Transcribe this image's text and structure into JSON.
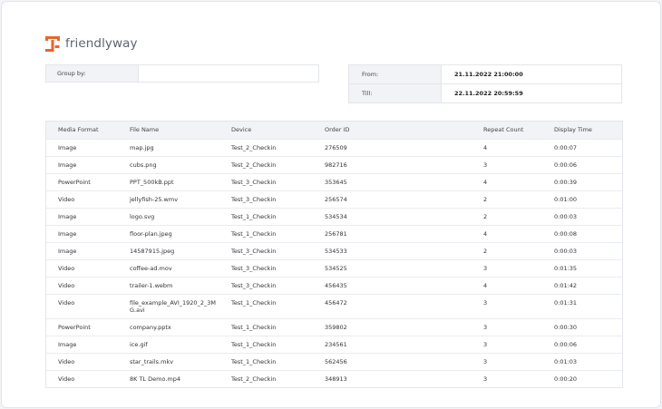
{
  "brand": {
    "name": "friendlyway",
    "accent": "#e8642d"
  },
  "filters": {
    "group_by_label": "Group by:",
    "group_by_value": "",
    "from_label": "From:",
    "from_value": "21.11.2022 21:00:00",
    "till_label": "Till:",
    "till_value": "22.11.2022 20:59:59"
  },
  "table": {
    "headers": [
      "Media Format",
      "File Name",
      "Device",
      "Order ID",
      "Repeat Count",
      "Display Time"
    ],
    "rows": [
      [
        "Image",
        "map.jpg",
        "Test_2_Checkin",
        "276509",
        "4",
        "0:00:07"
      ],
      [
        "Image",
        "cubs.png",
        "Test_2_Checkin",
        "982716",
        "3",
        "0:00:06"
      ],
      [
        "PowerPoint",
        "PPT_500kB.ppt",
        "Test_3_Checkin",
        "353645",
        "4",
        "0:00:39"
      ],
      [
        "Video",
        "jellyfish-25.wmv",
        "Test_3_Checkin",
        "256574",
        "2",
        "0:01:00"
      ],
      [
        "Image",
        "logo.svg",
        "Test_1_Checkin",
        "534534",
        "2",
        "0:00:03"
      ],
      [
        "Image",
        "floor-plan.jpeg",
        "Test_1_Checkin",
        "256781",
        "4",
        "0:00:08"
      ],
      [
        "Image",
        "14587915.jpeg",
        "Test_3_Checkin",
        "534533",
        "2",
        "0:00:03"
      ],
      [
        "Video",
        "coffee-ad.mov",
        "Test_3_Checkin",
        "534525",
        "3",
        "0:01:35"
      ],
      [
        "Video",
        "trailer-1.webm",
        "Test_3_Checkin",
        "456435",
        "4",
        "0:01:42"
      ],
      [
        "Video",
        "file_example_AVI_1920_2_3MG.avi",
        "Test_1_Checkin",
        "456472",
        "3",
        "0:01:31"
      ],
      [
        "PowerPoint",
        "company.pptx",
        "Test_1_Checkin",
        "359802",
        "3",
        "0:00:30"
      ],
      [
        "Image",
        "ice.gif",
        "Test_1_Checkin",
        "234561",
        "3",
        "0:00:06"
      ],
      [
        "Video",
        "star_trails.mkv",
        "Test_1_Checkin",
        "562456",
        "3",
        "0:01:03"
      ],
      [
        "Video",
        "8K TL Demo.mp4",
        "Test_2_Checkin",
        "348913",
        "3",
        "0:00:20"
      ]
    ]
  }
}
